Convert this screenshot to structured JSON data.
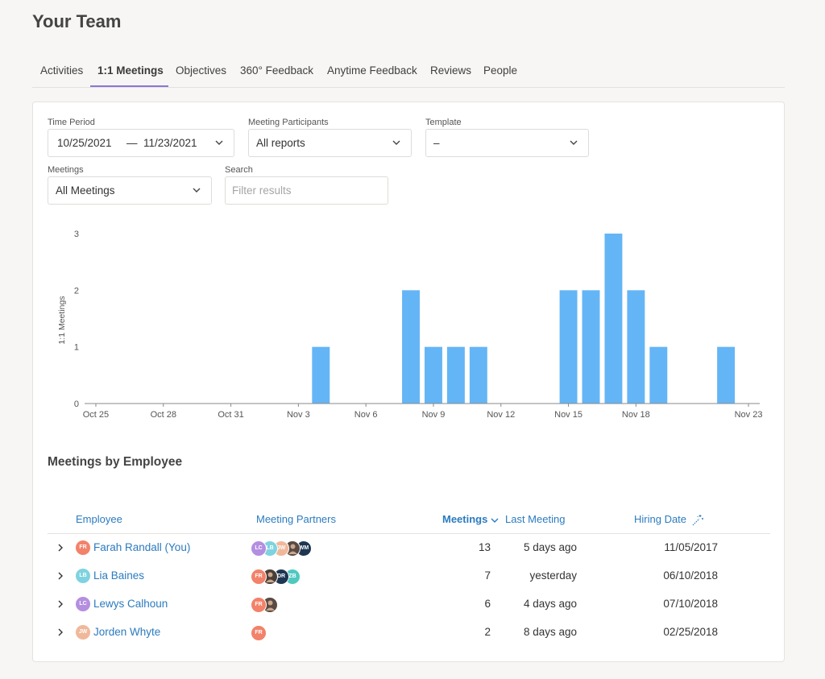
{
  "page_title": "Your Team",
  "tabs": [
    {
      "label": "Activities"
    },
    {
      "label": "1:1 Meetings"
    },
    {
      "label": "Objectives"
    },
    {
      "label": "360° Feedback"
    },
    {
      "label": "Anytime Feedback"
    },
    {
      "label": "Reviews"
    },
    {
      "label": "People"
    }
  ],
  "filters": {
    "time_period_label": "Time Period",
    "date_start": "10/25/2021",
    "date_sep": "—",
    "date_end": "11/23/2021",
    "participants_label": "Meeting Participants",
    "participants_value": "All reports",
    "template_label": "Template",
    "template_value": "–",
    "meetings_label": "Meetings",
    "meetings_value": "All Meetings",
    "search_label": "Search",
    "search_placeholder": "Filter results"
  },
  "chart_data": {
    "type": "bar",
    "ylabel": "1:1 Meetings",
    "ylim": [
      0,
      3
    ],
    "yticks": [
      0,
      1,
      2,
      3
    ],
    "x_start": "Oct 25",
    "days": 30,
    "xtick_labels": [
      {
        "day": 0,
        "label": "Oct 25"
      },
      {
        "day": 3,
        "label": "Oct 28"
      },
      {
        "day": 6,
        "label": "Oct 31"
      },
      {
        "day": 9,
        "label": "Nov 3"
      },
      {
        "day": 12,
        "label": "Nov 6"
      },
      {
        "day": 15,
        "label": "Nov 9"
      },
      {
        "day": 18,
        "label": "Nov 12"
      },
      {
        "day": 21,
        "label": "Nov 15"
      },
      {
        "day": 24,
        "label": "Nov 18"
      },
      {
        "day": 29,
        "label": "Nov 23"
      }
    ],
    "bars": [
      {
        "date": "Nov 4",
        "day": 10,
        "value": 1
      },
      {
        "date": "Nov 8",
        "day": 14,
        "value": 2
      },
      {
        "date": "Nov 9",
        "day": 15,
        "value": 1
      },
      {
        "date": "Nov 10",
        "day": 16,
        "value": 1
      },
      {
        "date": "Nov 11",
        "day": 17,
        "value": 1
      },
      {
        "date": "Nov 15",
        "day": 21,
        "value": 2
      },
      {
        "date": "Nov 16",
        "day": 22,
        "value": 2
      },
      {
        "date": "Nov 17",
        "day": 23,
        "value": 3
      },
      {
        "date": "Nov 18",
        "day": 24,
        "value": 2
      },
      {
        "date": "Nov 19",
        "day": 25,
        "value": 1
      },
      {
        "date": "Nov 22",
        "day": 28,
        "value": 1
      }
    ],
    "bar_color": "#64b5f6",
    "grid": false
  },
  "section_title": "Meetings by Employee",
  "table": {
    "headers": {
      "employee": "Employee",
      "partners": "Meeting Partners",
      "meetings": "Meetings",
      "last_meeting": "Last Meeting",
      "hiring_date": "Hiring Date"
    },
    "sort_column": "meetings",
    "rows": [
      {
        "initials": "FR",
        "avatar_color": "#f2826a",
        "name": "Farah Randall (You)",
        "partners": [
          {
            "initials": "LC",
            "color": "#b48ee0"
          },
          {
            "initials": "LB",
            "color": "#7fd3e0"
          },
          {
            "initials": "JW",
            "color": "#f0b89a"
          },
          {
            "initials": "",
            "color": "#5a4a42",
            "photo": true
          },
          {
            "initials": "WM",
            "color": "#1f3652"
          }
        ],
        "meetings": "13",
        "last_meeting": "5 days ago",
        "hiring_date": "11/05/2017"
      },
      {
        "initials": "LB",
        "avatar_color": "#7fd3e0",
        "name": "Lia Baines",
        "partners": [
          {
            "initials": "FR",
            "color": "#f2826a"
          },
          {
            "initials": "",
            "color": "#4a3e38",
            "photo": true
          },
          {
            "initials": "DR",
            "color": "#1f3652"
          },
          {
            "initials": "ZB",
            "color": "#4fc9c0"
          }
        ],
        "meetings": "7",
        "last_meeting": "yesterday",
        "hiring_date": "06/10/2018"
      },
      {
        "initials": "LC",
        "avatar_color": "#b48ee0",
        "name": "Lewys Calhoun",
        "partners": [
          {
            "initials": "FR",
            "color": "#f2826a"
          },
          {
            "initials": "",
            "color": "#5a4a42",
            "photo": true
          }
        ],
        "meetings": "6",
        "last_meeting": "4 days ago",
        "hiring_date": "07/10/2018"
      },
      {
        "initials": "JW",
        "avatar_color": "#f0b89a",
        "name": "Jorden Whyte",
        "partners": [
          {
            "initials": "FR",
            "color": "#f2826a"
          }
        ],
        "meetings": "2",
        "last_meeting": "8 days ago",
        "hiring_date": "02/25/2018"
      }
    ]
  }
}
